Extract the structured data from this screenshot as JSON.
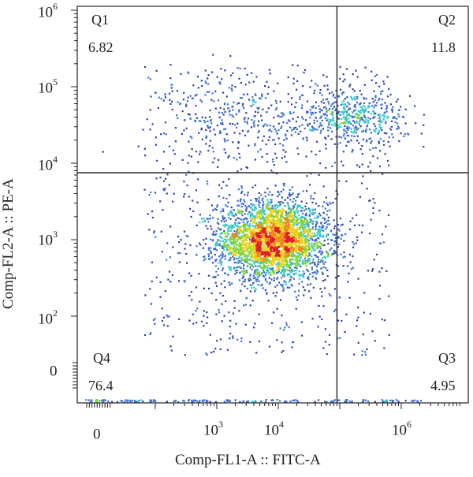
{
  "chart_data": {
    "type": "scatter",
    "subtype": "flow-cytometry-quadrant-density-plot",
    "xlabel": "Comp-FL1-A :: FITC-A",
    "ylabel": "Comp-FL2-A :: PE-A",
    "x_scale": "biexponential",
    "y_scale": "biexponential",
    "x_ticks": [
      {
        "base": "0",
        "exp": ""
      },
      {
        "base": "10",
        "exp": "3"
      },
      {
        "base": "10",
        "exp": "4"
      },
      {
        "base": "10",
        "exp": "6"
      }
    ],
    "y_ticks": [
      {
        "base": "10",
        "exp": "6"
      },
      {
        "base": "10",
        "exp": "5"
      },
      {
        "base": "10",
        "exp": "4"
      },
      {
        "base": "10",
        "exp": "3"
      },
      {
        "base": "10",
        "exp": "2"
      },
      {
        "base": "0",
        "exp": ""
      }
    ],
    "gate": {
      "x": 90000,
      "y": 7500
    },
    "quadrants": [
      {
        "name": "Q1",
        "value": "6.82"
      },
      {
        "name": "Q2",
        "value": "11.8"
      },
      {
        "name": "Q3",
        "value": "4.95"
      },
      {
        "name": "Q4",
        "value": "76.4"
      }
    ],
    "populations": [
      {
        "center_x": 8000,
        "center_y": 1000,
        "spread_x_decades": 0.45,
        "spread_y_decades": 0.25,
        "weight": 0.74
      },
      {
        "center_x": 150000,
        "center_y": 40000,
        "spread_x_decades": 0.45,
        "spread_y_decades": 0.18,
        "weight": 0.12
      },
      {
        "center_x": 2000,
        "center_y": 40000,
        "spread_x_decades": 0.6,
        "spread_y_decades": 0.3,
        "weight": 0.06
      }
    ],
    "colormap": [
      "#2b3fa8",
      "#3a6fd0",
      "#33c8c8",
      "#7ed23a",
      "#e8d21a",
      "#f08a1a",
      "#e02020"
    ],
    "grid": false,
    "legend": "none"
  }
}
